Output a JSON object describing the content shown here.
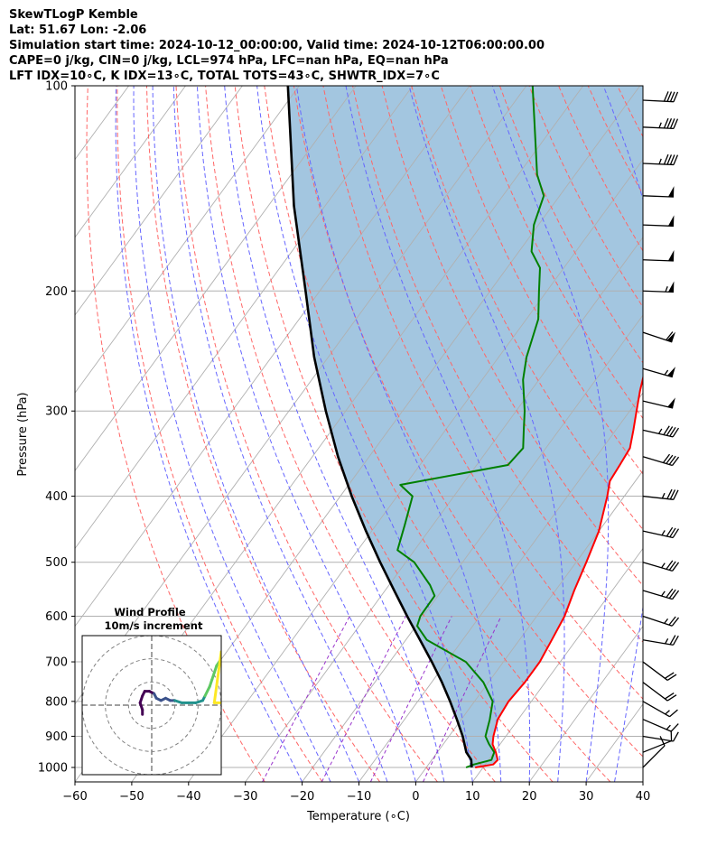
{
  "header": {
    "line1": "SkewTLogP Kemble",
    "line2": "Lat: 51.67   Lon: -2.06",
    "line3": "Simulation start time: 2024-10-12_00:00:00, Valid time: 2024-10-12T06:00:00.00",
    "line4": "CAPE=0 j/kg, CIN=0 j/kg, LCL=974 hPa, LFC=nan hPa, EQ=nan hPa",
    "line5": "LFT IDX=10∘C, K IDX=13∘C, TOTAL TOTS=43∘C, SHWTR_IDX=7∘C"
  },
  "chart_data": {
    "type": "line",
    "subtype": "skew-T log-P diagram",
    "xlabel": "Temperature (∘C)",
    "ylabel": "Pressure (hPa)",
    "xlim": [
      -60,
      40
    ],
    "ylim": [
      1050,
      100
    ],
    "y_scale": "log",
    "grid": true,
    "x_ticks": [
      "−60",
      "−50",
      "−40",
      "−30",
      "−20",
      "−10",
      "0",
      "10",
      "20",
      "30",
      "40"
    ],
    "y_ticks": [
      "100",
      "200",
      "300",
      "400",
      "500",
      "600",
      "700",
      "800",
      "900",
      "1000"
    ],
    "colors": {
      "temperature": "#ff0000",
      "dewpoint": "#008000",
      "parcel": "#000000",
      "shading": "#a3c6e0",
      "dry_adiabats": "#ff6666",
      "moist_adiabats": "#6666ff",
      "mixing_ratio": "#9933cc",
      "isotherms": "#b0b0b0"
    },
    "series": [
      {
        "name": "temperature",
        "points": [
          [
            1000,
            8.6
          ],
          [
            990,
            11.4
          ],
          [
            975,
            11.6
          ],
          [
            950,
            10.3
          ],
          [
            925,
            8.7
          ],
          [
            900,
            7.8
          ],
          [
            850,
            6.4
          ],
          [
            800,
            6.0
          ],
          [
            750,
            6.4
          ],
          [
            700,
            6.4
          ],
          [
            650,
            5.7
          ],
          [
            600,
            4.9
          ],
          [
            550,
            3.3
          ],
          [
            500,
            1.8
          ],
          [
            450,
            0.0
          ],
          [
            400,
            -3.0
          ],
          [
            380,
            -4.5
          ],
          [
            360,
            -4.8
          ],
          [
            340,
            -5.2
          ],
          [
            320,
            -6.9
          ],
          [
            300,
            -8.8
          ],
          [
            280,
            -10.8
          ],
          [
            260,
            -12.7
          ],
          [
            240,
            -13.6
          ],
          [
            235,
            -14.0
          ],
          [
            200,
            -8.1
          ],
          [
            180,
            -6.0
          ],
          [
            160,
            -5.1
          ],
          [
            145,
            -4.5
          ],
          [
            130,
            -5.5
          ],
          [
            120,
            -5.7
          ],
          [
            110,
            -3.6
          ],
          [
            100,
            -4.1
          ]
        ]
      },
      {
        "name": "dewpoint",
        "points": [
          [
            1000,
            7.0
          ],
          [
            990,
            8.0
          ],
          [
            975,
            10.5
          ],
          [
            950,
            10.0
          ],
          [
            925,
            8.1
          ],
          [
            900,
            6.4
          ],
          [
            850,
            5.0
          ],
          [
            800,
            3.2
          ],
          [
            750,
            -0.9
          ],
          [
            700,
            -6.6
          ],
          [
            650,
            -16.3
          ],
          [
            620,
            -19.8
          ],
          [
            600,
            -20.5
          ],
          [
            560,
            -20.6
          ],
          [
            540,
            -22.8
          ],
          [
            500,
            -28.5
          ],
          [
            480,
            -33.0
          ],
          [
            440,
            -35.0
          ],
          [
            400,
            -37.3
          ],
          [
            385,
            -40.9
          ],
          [
            360,
            -24.5
          ],
          [
            340,
            -24.0
          ],
          [
            320,
            -26.2
          ],
          [
            300,
            -28.5
          ],
          [
            270,
            -32.8
          ],
          [
            250,
            -35.1
          ],
          [
            220,
            -37.9
          ],
          [
            200,
            -41.4
          ],
          [
            185,
            -44.2
          ],
          [
            175,
            -47.8
          ],
          [
            160,
            -50.8
          ],
          [
            145,
            -52.8
          ],
          [
            135,
            -56.7
          ],
          [
            100,
            -68.9
          ]
        ]
      },
      {
        "name": "parcel",
        "points": [
          [
            1000,
            8.0
          ],
          [
            974,
            6.9
          ],
          [
            950,
            5.1
          ],
          [
            900,
            2.4
          ],
          [
            850,
            -0.8
          ],
          [
            800,
            -4.3
          ],
          [
            750,
            -8.2
          ],
          [
            700,
            -12.6
          ],
          [
            650,
            -17.5
          ],
          [
            600,
            -22.8
          ],
          [
            550,
            -28.4
          ],
          [
            500,
            -34.5
          ],
          [
            450,
            -41.0
          ],
          [
            400,
            -48.0
          ],
          [
            350,
            -55.5
          ],
          [
            300,
            -63.5
          ],
          [
            250,
            -72.5
          ],
          [
            200,
            -82.5
          ],
          [
            150,
            -95.5
          ],
          [
            100,
            -112.0
          ]
        ]
      }
    ],
    "wind_barbs": [
      {
        "p": 1000,
        "u": -4,
        "v": -4
      },
      {
        "p": 950,
        "u": -5,
        "v": -2
      },
      {
        "p": 900,
        "u": -6,
        "v": 1
      },
      {
        "p": 850,
        "u": -7,
        "v": 3
      },
      {
        "p": 800,
        "u": -7,
        "v": 4
      },
      {
        "p": 750,
        "u": -8,
        "v": 6
      },
      {
        "p": 700,
        "u": -8,
        "v": 6
      },
      {
        "p": 650,
        "u": -12,
        "v": 2
      },
      {
        "p": 600,
        "u": -12,
        "v": 4
      },
      {
        "p": 550,
        "u": -17,
        "v": 5
      },
      {
        "p": 500,
        "u": -17,
        "v": 5
      },
      {
        "p": 450,
        "u": -18,
        "v": 4
      },
      {
        "p": 400,
        "u": -18,
        "v": 2
      },
      {
        "p": 350,
        "u": -20,
        "v": 6
      },
      {
        "p": 320,
        "u": -22,
        "v": 5
      },
      {
        "p": 290,
        "u": -25,
        "v": 6
      },
      {
        "p": 260,
        "u": -28,
        "v": 8
      },
      {
        "p": 230,
        "u": -30,
        "v": 10
      },
      {
        "p": 200,
        "u": -28,
        "v": 1
      },
      {
        "p": 180,
        "u": -27,
        "v": 1
      },
      {
        "p": 160,
        "u": -26,
        "v": 1
      },
      {
        "p": 145,
        "u": -26,
        "v": 1
      },
      {
        "p": 130,
        "u": -24,
        "v": 1
      },
      {
        "p": 115,
        "u": -22,
        "v": 1
      },
      {
        "p": 105,
        "u": -20,
        "v": 1
      }
    ],
    "inset": {
      "title": "Wind Profile",
      "subtitle": "10m/s increment",
      "range": 30,
      "rings": [
        10,
        20,
        30
      ],
      "hodograph": [
        [
          -4,
          -4
        ],
        [
          -4,
          -2
        ],
        [
          -5,
          1
        ],
        [
          -4,
          4
        ],
        [
          -3,
          6
        ],
        [
          -1,
          6
        ],
        [
          1,
          5
        ],
        [
          2,
          3
        ],
        [
          4,
          2
        ],
        [
          6,
          3
        ],
        [
          8,
          2
        ],
        [
          10,
          2
        ],
        [
          13,
          1
        ],
        [
          16,
          1
        ],
        [
          19,
          1
        ],
        [
          22,
          2
        ],
        [
          23,
          4
        ],
        [
          25,
          8
        ],
        [
          26,
          11
        ],
        [
          27,
          14
        ],
        [
          28,
          17
        ],
        [
          30,
          20
        ],
        [
          30,
          23
        ],
        [
          27,
          1
        ],
        [
          30,
          1
        ],
        [
          33,
          2
        ]
      ]
    }
  }
}
